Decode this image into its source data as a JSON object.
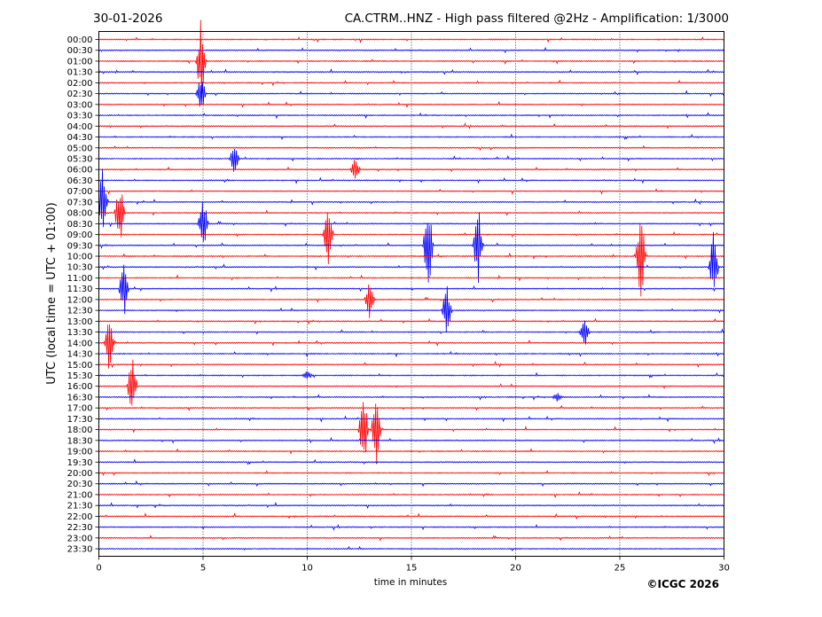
{
  "header": {
    "date": "30-01-2026",
    "station_title": "CA.CTRM..HNZ - High pass filtered @2Hz - Amplification: 1/3000"
  },
  "footer": {
    "copyright": "©ICGC 2026"
  },
  "chart_data": {
    "type": "line",
    "subtype": "helicorder",
    "title": "CA.CTRM..HNZ - High pass filtered @2Hz - Amplification: 1/3000",
    "date": "30-01-2026",
    "xlabel": "time in minutes",
    "ylabel": "UTC (local time = UTC + 01:00)",
    "xlim": [
      0,
      30
    ],
    "x_ticks": [
      0,
      5,
      10,
      15,
      20,
      25,
      30
    ],
    "y_tick_labels": [
      "00:00",
      "00:30",
      "01:00",
      "01:30",
      "02:00",
      "02:30",
      "03:00",
      "03:30",
      "04:00",
      "04:30",
      "05:00",
      "05:30",
      "06:00",
      "06:30",
      "07:00",
      "07:30",
      "08:00",
      "08:30",
      "09:00",
      "09:30",
      "10:00",
      "10:30",
      "11:00",
      "11:30",
      "12:00",
      "12:30",
      "13:00",
      "13:30",
      "14:00",
      "14:30",
      "15:00",
      "15:30",
      "16:00",
      "16:30",
      "17:00",
      "17:30",
      "18:00",
      "18:30",
      "19:00",
      "19:30",
      "20:00",
      "20:30",
      "21:00",
      "21:30",
      "22:00",
      "22:30",
      "23:00",
      "23:30"
    ],
    "grid": "vertical dotted at every 5 minutes",
    "trace_colors": [
      "#ff0000",
      "#0000ff"
    ],
    "color_pattern": "alternating per trace line (red, blue, red, blue ...)",
    "traces_per_row_label": 2,
    "events": [
      {
        "trace": "01:00",
        "minute": 4.9,
        "amp_lines": 4.0
      },
      {
        "trace": "02:30",
        "minute": 4.9,
        "amp_lines": 1.8
      },
      {
        "trace": "05:30",
        "minute": 6.5,
        "amp_lines": 1.4
      },
      {
        "trace": "06:00",
        "minute": 12.3,
        "amp_lines": 1.2
      },
      {
        "trace": "07:30",
        "minute": 0.2,
        "amp_lines": 3.5
      },
      {
        "trace": "08:00",
        "minute": 1.0,
        "amp_lines": 3.2
      },
      {
        "trace": "08:30",
        "minute": 5.0,
        "amp_lines": 3.0
      },
      {
        "trace": "09:00",
        "minute": 11.0,
        "amp_lines": 4.0
      },
      {
        "trace": "09:30",
        "minute": 15.8,
        "amp_lines": 5.0
      },
      {
        "trace": "09:30",
        "minute": 18.2,
        "amp_lines": 4.0
      },
      {
        "trace": "10:00",
        "minute": 26.0,
        "amp_lines": 4.5
      },
      {
        "trace": "10:30",
        "minute": 29.5,
        "amp_lines": 3.5
      },
      {
        "trace": "11:30",
        "minute": 1.2,
        "amp_lines": 3.0
      },
      {
        "trace": "12:00",
        "minute": 13.0,
        "amp_lines": 2.0
      },
      {
        "trace": "12:30",
        "minute": 16.7,
        "amp_lines": 2.5
      },
      {
        "trace": "13:30",
        "minute": 23.3,
        "amp_lines": 1.8
      },
      {
        "trace": "14:00",
        "minute": 0.5,
        "amp_lines": 3.0
      },
      {
        "trace": "15:30",
        "minute": 10.0,
        "amp_lines": 0.5
      },
      {
        "trace": "16:00",
        "minute": 1.6,
        "amp_lines": 3.0
      },
      {
        "trace": "16:30",
        "minute": 22.0,
        "amp_lines": 0.4
      },
      {
        "trace": "18:00",
        "minute": 12.7,
        "amp_lines": 4.0
      },
      {
        "trace": "18:00",
        "minute": 13.3,
        "amp_lines": 4.0
      }
    ]
  }
}
